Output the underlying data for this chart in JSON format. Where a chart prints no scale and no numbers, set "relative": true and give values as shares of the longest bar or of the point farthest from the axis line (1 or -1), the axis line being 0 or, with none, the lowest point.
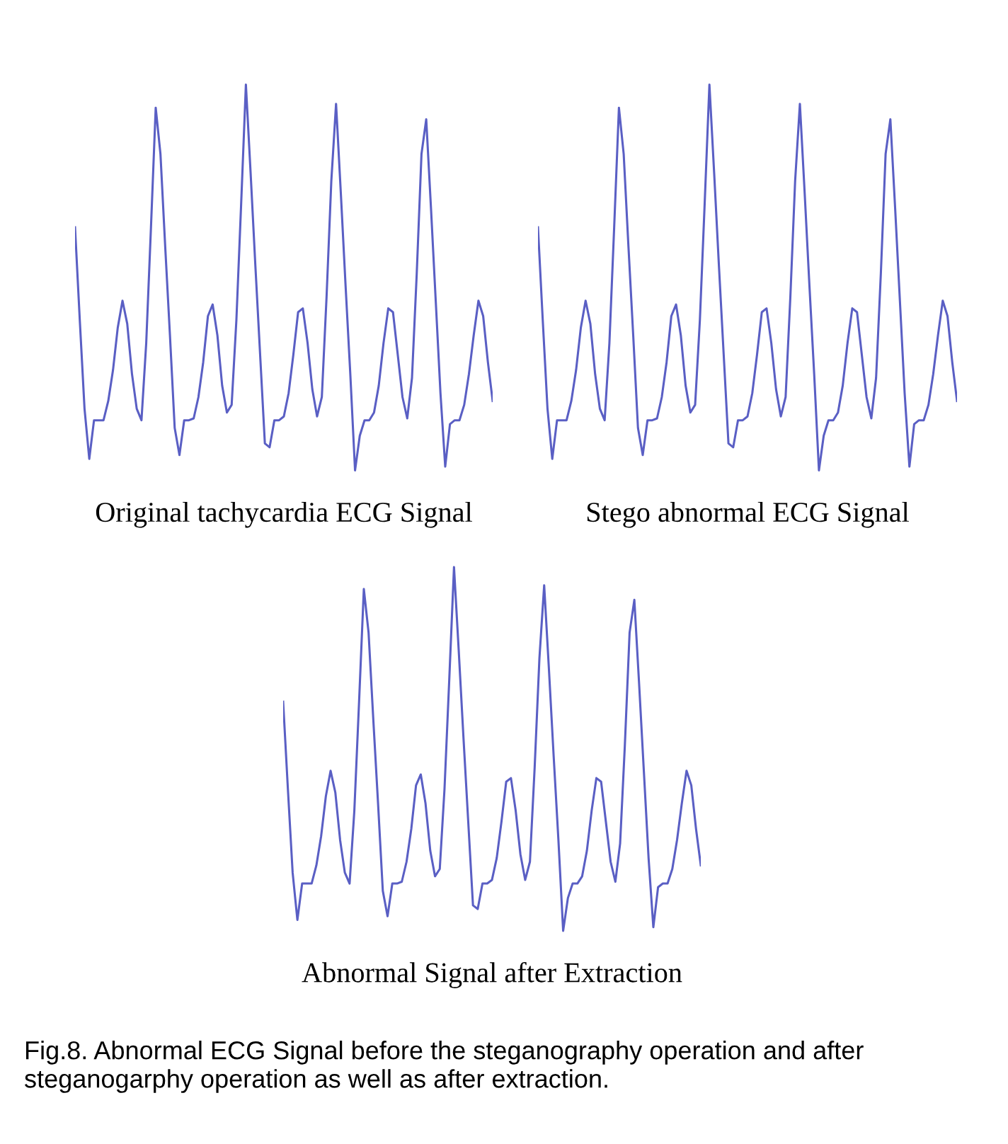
{
  "chart_data": [
    {
      "type": "line",
      "relative": true,
      "xlabel": "Original tachycardia ECG Signal",
      "categories": [
        null,
        null,
        null,
        null,
        null,
        null,
        null,
        null,
        null,
        null,
        null,
        null,
        null,
        null,
        null,
        null,
        null,
        null,
        null,
        null,
        null,
        null,
        null,
        null,
        null,
        null,
        null,
        null,
        null,
        null,
        null,
        null,
        null,
        null,
        null,
        null,
        null,
        null,
        null,
        null,
        null,
        null,
        null,
        null,
        null,
        null,
        null,
        null,
        null,
        null,
        null,
        null,
        null,
        null,
        null,
        null,
        null,
        null,
        null,
        null,
        null,
        null,
        null,
        null,
        null,
        null,
        null,
        null,
        null,
        null,
        null,
        null,
        null,
        null,
        null,
        null,
        null,
        null,
        null,
        null,
        null,
        null,
        null,
        null,
        null,
        null,
        null,
        null,
        null
      ],
      "series": [
        {
          "color": "#5a5fc4",
          "values": [
            0.63,
            0.39,
            0.16,
            0.03,
            0.13,
            0.13,
            0.13,
            0.18,
            0.26,
            0.37,
            0.44,
            0.38,
            0.25,
            0.16,
            0.13,
            0.33,
            0.63,
            0.94,
            0.82,
            0.58,
            0.35,
            0.11,
            0.04,
            0.13,
            0.13,
            0.135,
            0.19,
            0.28,
            0.4,
            0.43,
            0.35,
            0.22,
            0.15,
            0.17,
            0.39,
            0.69,
            1.0,
            0.77,
            0.53,
            0.3,
            0.07,
            0.06,
            0.13,
            0.13,
            0.14,
            0.2,
            0.3,
            0.41,
            0.42,
            0.33,
            0.21,
            0.14,
            0.19,
            0.45,
            0.75,
            0.95,
            0.72,
            0.48,
            0.25,
            0.0,
            0.09,
            0.13,
            0.13,
            0.15,
            0.22,
            0.33,
            0.42,
            0.41,
            0.3,
            0.19,
            0.135,
            0.24,
            0.51,
            0.82,
            0.91,
            0.68,
            0.44,
            0.2,
            0.01,
            0.12,
            0.13,
            0.13,
            0.17,
            0.25,
            0.35,
            0.44,
            0.4,
            0.28,
            0.18
          ]
        }
      ]
    },
    {
      "type": "line",
      "relative": true,
      "xlabel": "Stego abnormal ECG Signal",
      "categories": [
        null,
        null,
        null,
        null,
        null,
        null,
        null,
        null,
        null,
        null,
        null,
        null,
        null,
        null,
        null,
        null,
        null,
        null,
        null,
        null,
        null,
        null,
        null,
        null,
        null,
        null,
        null,
        null,
        null,
        null,
        null,
        null,
        null,
        null,
        null,
        null,
        null,
        null,
        null,
        null,
        null,
        null,
        null,
        null,
        null,
        null,
        null,
        null,
        null,
        null,
        null,
        null,
        null,
        null,
        null,
        null,
        null,
        null,
        null,
        null,
        null,
        null,
        null,
        null,
        null,
        null,
        null,
        null,
        null,
        null,
        null,
        null,
        null,
        null,
        null,
        null,
        null,
        null,
        null,
        null,
        null,
        null,
        null,
        null,
        null,
        null,
        null,
        null,
        null
      ],
      "series": [
        {
          "color": "#5a5fc4",
          "values": [
            0.63,
            0.39,
            0.16,
            0.03,
            0.13,
            0.13,
            0.13,
            0.18,
            0.26,
            0.37,
            0.44,
            0.38,
            0.25,
            0.16,
            0.13,
            0.33,
            0.63,
            0.94,
            0.82,
            0.58,
            0.35,
            0.11,
            0.04,
            0.13,
            0.13,
            0.135,
            0.19,
            0.28,
            0.4,
            0.43,
            0.35,
            0.22,
            0.15,
            0.17,
            0.39,
            0.69,
            1.0,
            0.77,
            0.53,
            0.3,
            0.07,
            0.06,
            0.13,
            0.13,
            0.14,
            0.2,
            0.3,
            0.41,
            0.42,
            0.33,
            0.21,
            0.14,
            0.19,
            0.45,
            0.75,
            0.95,
            0.72,
            0.48,
            0.25,
            0.0,
            0.09,
            0.13,
            0.13,
            0.15,
            0.22,
            0.33,
            0.42,
            0.41,
            0.3,
            0.19,
            0.135,
            0.24,
            0.51,
            0.82,
            0.91,
            0.68,
            0.44,
            0.2,
            0.01,
            0.12,
            0.13,
            0.13,
            0.17,
            0.25,
            0.35,
            0.44,
            0.4,
            0.28,
            0.18
          ]
        }
      ]
    },
    {
      "type": "line",
      "relative": true,
      "xlabel": "Abnormal Signal after Extraction",
      "annotations": [
        "Fig.8. Abnormal ECG Signal before the steganography operation and after steganogarphy operation as well as after extraction."
      ],
      "categories": [
        null,
        null,
        null,
        null,
        null,
        null,
        null,
        null,
        null,
        null,
        null,
        null,
        null,
        null,
        null,
        null,
        null,
        null,
        null,
        null,
        null,
        null,
        null,
        null,
        null,
        null,
        null,
        null,
        null,
        null,
        null,
        null,
        null,
        null,
        null,
        null,
        null,
        null,
        null,
        null,
        null,
        null,
        null,
        null,
        null,
        null,
        null,
        null,
        null,
        null,
        null,
        null,
        null,
        null,
        null,
        null,
        null,
        null,
        null,
        null,
        null,
        null,
        null,
        null,
        null,
        null,
        null,
        null,
        null,
        null,
        null,
        null,
        null,
        null,
        null,
        null,
        null,
        null,
        null,
        null,
        null,
        null,
        null,
        null,
        null,
        null,
        null,
        null,
        null
      ],
      "series": [
        {
          "color": "#5a5fc4",
          "values": [
            0.63,
            0.39,
            0.16,
            0.03,
            0.13,
            0.13,
            0.13,
            0.18,
            0.26,
            0.37,
            0.44,
            0.38,
            0.25,
            0.16,
            0.13,
            0.33,
            0.63,
            0.94,
            0.82,
            0.58,
            0.35,
            0.11,
            0.04,
            0.13,
            0.13,
            0.135,
            0.19,
            0.28,
            0.4,
            0.43,
            0.35,
            0.22,
            0.15,
            0.17,
            0.39,
            0.69,
            1.0,
            0.77,
            0.53,
            0.3,
            0.07,
            0.06,
            0.13,
            0.13,
            0.14,
            0.2,
            0.3,
            0.41,
            0.42,
            0.33,
            0.21,
            0.14,
            0.19,
            0.45,
            0.75,
            0.95,
            0.72,
            0.48,
            0.25,
            0.0,
            0.09,
            0.13,
            0.13,
            0.15,
            0.22,
            0.33,
            0.42,
            0.41,
            0.3,
            0.19,
            0.135,
            0.24,
            0.51,
            0.82,
            0.91,
            0.68,
            0.44,
            0.2,
            0.01,
            0.12,
            0.13,
            0.13,
            0.17,
            0.25,
            0.35,
            0.44,
            0.4,
            0.28,
            0.18
          ]
        }
      ]
    }
  ]
}
